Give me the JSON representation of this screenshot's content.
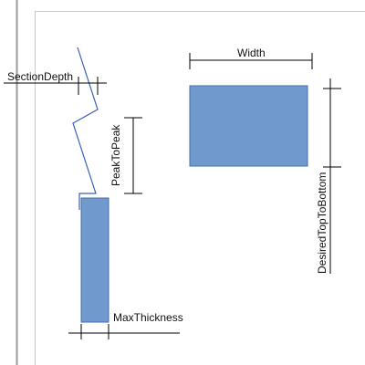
{
  "diagram": {
    "labels": {
      "section_depth": "SectionDepth",
      "peak_to_peak": "PeakToPeak",
      "max_thickness": "MaxThickness",
      "width": "Width",
      "desired_top_to_bottom": "DesiredTopToBottom"
    },
    "colors": {
      "shape_fill": "#7099CD",
      "shape_stroke": "#4A6FA5",
      "profile_line": "#3C5FB5",
      "dimension_line": "#000000",
      "page_border": "#C8C8C8",
      "left_rule": "#9A9A9A"
    }
  }
}
